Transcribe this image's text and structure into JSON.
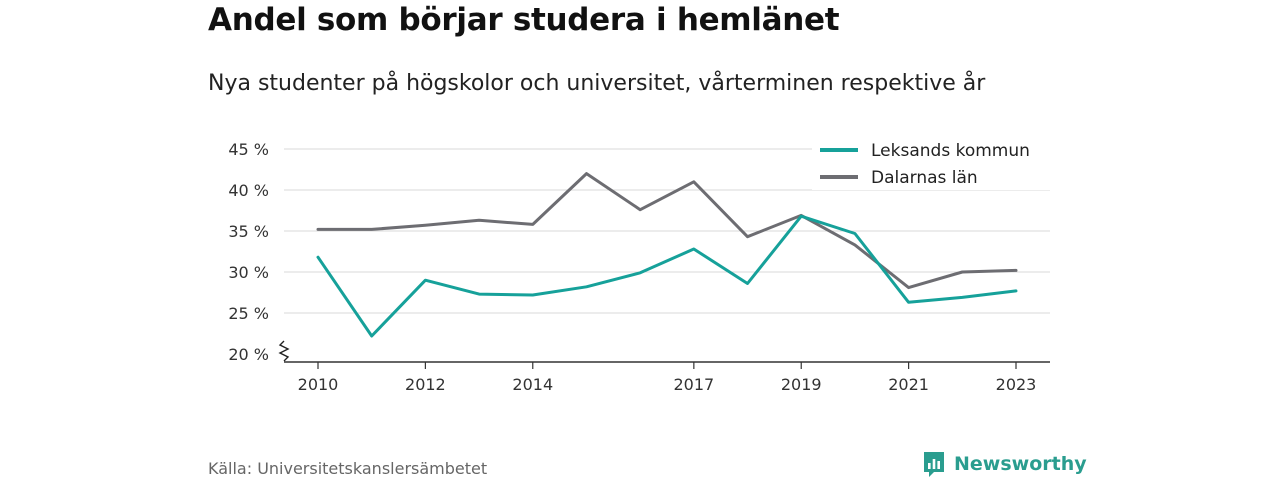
{
  "title": "Andel som börjar studera i hemlänet",
  "subtitle": "Nya studenter på högskolor och universitet, vårterminen respektive år",
  "source": "Källa: Universitetskanslersämbetet",
  "brand": "Newsworthy",
  "colors": {
    "leksand": "#16a19a",
    "dalarna": "#6d6d72",
    "grid": "#d9d9d9",
    "brand": "#2a9d8f"
  },
  "chart_data": {
    "type": "line",
    "x": [
      2010,
      2011,
      2012,
      2013,
      2014,
      2015,
      2016,
      2017,
      2018,
      2019,
      2020,
      2021,
      2022,
      2023
    ],
    "x_ticks": [
      2010,
      2012,
      2014,
      2017,
      2019,
      2021,
      2023
    ],
    "y_ticks": [
      20,
      25,
      30,
      35,
      40,
      45
    ],
    "y_tick_labels": [
      "20 %",
      "25 %",
      "30 %",
      "35 %",
      "40 %",
      "45 %"
    ],
    "ylim": [
      20,
      45
    ],
    "y_axis_break": true,
    "grid": true,
    "legend_position": "top-right",
    "series": [
      {
        "name": "Leksands kommun",
        "color": "#16a19a",
        "values": [
          31.8,
          22.2,
          29.0,
          27.3,
          27.2,
          28.2,
          29.9,
          32.8,
          28.6,
          36.8,
          34.7,
          26.3,
          26.9,
          27.7
        ]
      },
      {
        "name": "Dalarnas län",
        "color": "#6d6d72",
        "values": [
          35.2,
          35.2,
          35.7,
          36.3,
          35.8,
          42.0,
          37.6,
          41.0,
          34.3,
          36.9,
          33.3,
          28.1,
          30.0,
          30.2
        ]
      }
    ]
  }
}
